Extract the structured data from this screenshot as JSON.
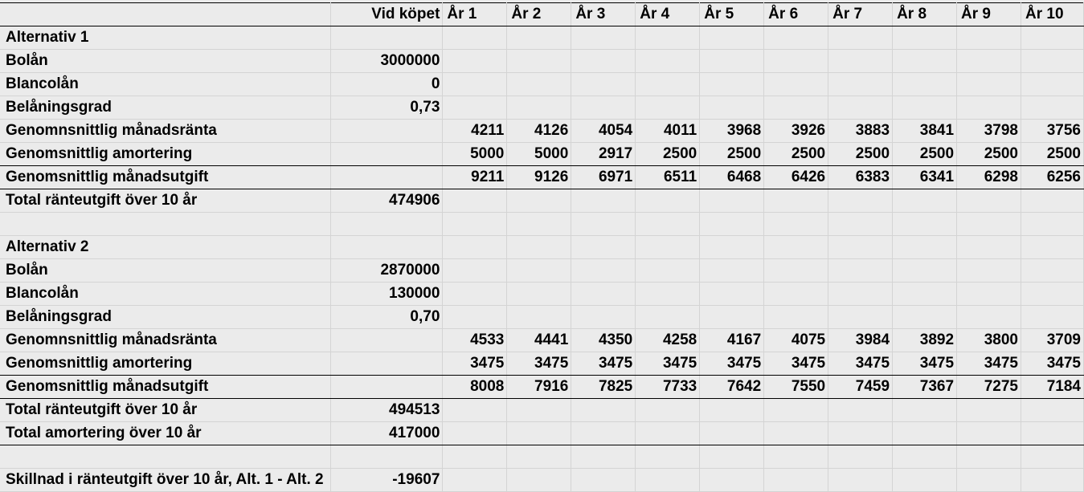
{
  "header": {
    "label": "",
    "purchase": "Vid köpet",
    "years": [
      "År 1",
      "År 2",
      "År 3",
      "År 4",
      "År 5",
      "År 6",
      "År 7",
      "År 8",
      "År 9",
      "År 10"
    ]
  },
  "rows": [
    {
      "label": "Alternativ 1",
      "purchase": "",
      "years": [
        "",
        "",
        "",
        "",
        "",
        "",
        "",
        "",
        "",
        ""
      ],
      "heading": true
    },
    {
      "label": "Bolån",
      "purchase": "3000000",
      "years": [
        "",
        "",
        "",
        "",
        "",
        "",
        "",
        "",
        "",
        ""
      ]
    },
    {
      "label": "Blancolån",
      "purchase": "0",
      "years": [
        "",
        "",
        "",
        "",
        "",
        "",
        "",
        "",
        "",
        ""
      ]
    },
    {
      "label": "Belåningsgrad",
      "purchase": "0,73",
      "years": [
        "",
        "",
        "",
        "",
        "",
        "",
        "",
        "",
        "",
        ""
      ]
    },
    {
      "label": "Genomnsnittlig månadsränta",
      "purchase": "",
      "years": [
        "4211",
        "4126",
        "4054",
        "4011",
        "3968",
        "3926",
        "3883",
        "3841",
        "3798",
        "3756"
      ]
    },
    {
      "label": "Genomsnittlig amortering",
      "purchase": "",
      "years": [
        "5000",
        "5000",
        "2917",
        "2500",
        "2500",
        "2500",
        "2500",
        "2500",
        "2500",
        "2500"
      ],
      "line_below": true
    },
    {
      "label": "Genomsnittlig månadsutgift",
      "purchase": "",
      "years": [
        "9211",
        "9126",
        "6971",
        "6511",
        "6468",
        "6426",
        "6383",
        "6341",
        "6298",
        "6256"
      ],
      "line_below": true
    },
    {
      "label": "Total ränteutgift över 10 år",
      "purchase": "474906",
      "years": [
        "",
        "",
        "",
        "",
        "",
        "",
        "",
        "",
        "",
        ""
      ]
    },
    {
      "label": "",
      "purchase": "",
      "years": [
        "",
        "",
        "",
        "",
        "",
        "",
        "",
        "",
        "",
        ""
      ]
    },
    {
      "label": "Alternativ 2",
      "purchase": "",
      "years": [
        "",
        "",
        "",
        "",
        "",
        "",
        "",
        "",
        "",
        ""
      ],
      "heading": true
    },
    {
      "label": "Bolån",
      "purchase": "2870000",
      "years": [
        "",
        "",
        "",
        "",
        "",
        "",
        "",
        "",
        "",
        ""
      ]
    },
    {
      "label": "Blancolån",
      "purchase": "130000",
      "years": [
        "",
        "",
        "",
        "",
        "",
        "",
        "",
        "",
        "",
        ""
      ]
    },
    {
      "label": "Belåningsgrad",
      "purchase": "0,70",
      "years": [
        "",
        "",
        "",
        "",
        "",
        "",
        "",
        "",
        "",
        ""
      ]
    },
    {
      "label": "Genomnsnittlig månadsränta",
      "purchase": "",
      "years": [
        "4533",
        "4441",
        "4350",
        "4258",
        "4167",
        "4075",
        "3984",
        "3892",
        "3800",
        "3709"
      ]
    },
    {
      "label": "Genomsnittlig amortering",
      "purchase": "",
      "years": [
        "3475",
        "3475",
        "3475",
        "3475",
        "3475",
        "3475",
        "3475",
        "3475",
        "3475",
        "3475"
      ],
      "line_below": true
    },
    {
      "label": "Genomsnittlig månadsutgift",
      "purchase": "",
      "years": [
        "8008",
        "7916",
        "7825",
        "7733",
        "7642",
        "7550",
        "7459",
        "7367",
        "7275",
        "7184"
      ],
      "line_below": true
    },
    {
      "label": "Total ränteutgift över 10 år",
      "purchase": "494513",
      "years": [
        "",
        "",
        "",
        "",
        "",
        "",
        "",
        "",
        "",
        ""
      ]
    },
    {
      "label": "Total amortering över 10 år",
      "purchase": "417000",
      "years": [
        "",
        "",
        "",
        "",
        "",
        "",
        "",
        "",
        "",
        ""
      ],
      "line_below": true
    },
    {
      "label": "",
      "purchase": "",
      "years": [
        "",
        "",
        "",
        "",
        "",
        "",
        "",
        "",
        "",
        ""
      ]
    },
    {
      "label": "Skillnad i ränteutgift över 10 år, Alt. 1 - Alt. 2",
      "purchase": "-19607",
      "years": [
        "",
        "",
        "",
        "",
        "",
        "",
        "",
        "",
        "",
        ""
      ]
    }
  ]
}
